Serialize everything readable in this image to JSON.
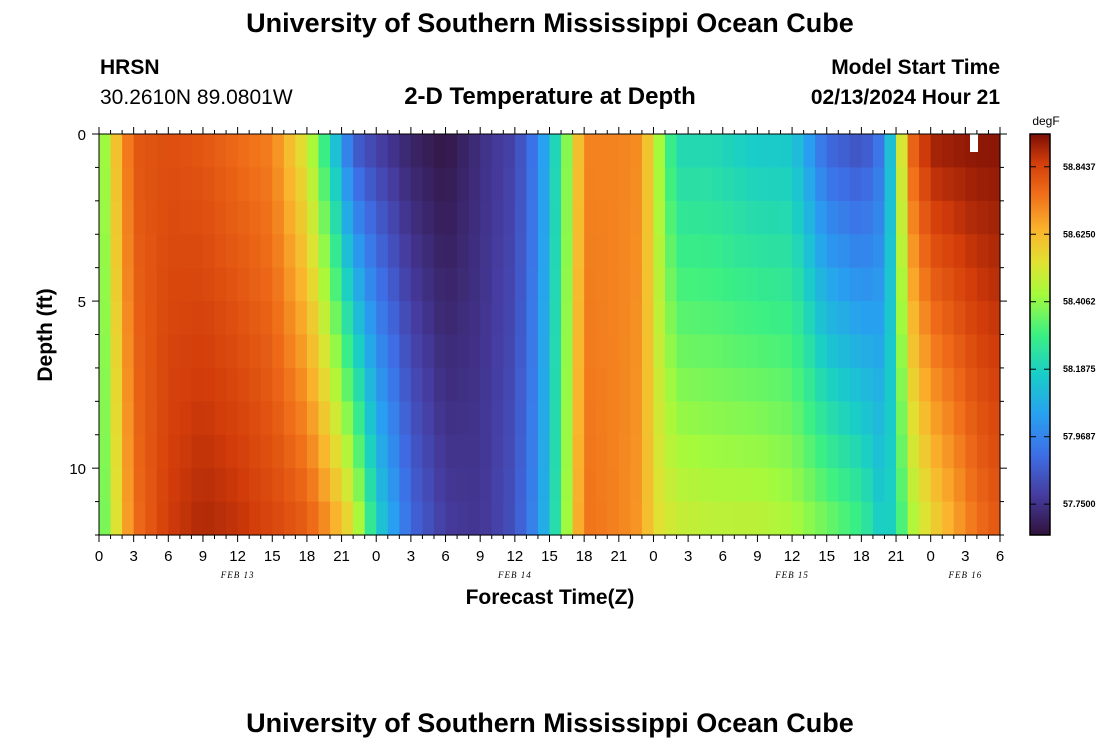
{
  "page": {
    "title": "University of Southern Mississippi Ocean Cube",
    "station": "HRSN",
    "coords": "30.2610N  89.0801W",
    "subtitle": "2-D Temperature at Depth",
    "model_label": "Model Start Time",
    "model_time": "02/13/2024 Hour 21",
    "bottom_title": "University of Southern Mississippi Ocean Cube"
  },
  "chart_data": {
    "type": "heatmap",
    "title": "2-D Temperature at Depth",
    "xlabel": "Forecast Time(Z)",
    "ylabel": "Depth (ft)",
    "x_start_hour_of_feb13": 0,
    "x_hours": 78,
    "x_ticks": [
      "0",
      "3",
      "6",
      "9",
      "12",
      "15",
      "18",
      "21",
      "0",
      "3",
      "6",
      "9",
      "12",
      "15",
      "18",
      "21",
      "0",
      "3",
      "6",
      "9",
      "12",
      "15",
      "18",
      "21",
      "0",
      "3",
      "6"
    ],
    "date_labels": [
      {
        "text": "FEB 13",
        "hour": 12
      },
      {
        "text": "FEB 14",
        "hour": 36
      },
      {
        "text": "FEB 15",
        "hour": 60
      },
      {
        "text": "FEB 16",
        "hour": 75
      }
    ],
    "y_ticks": [
      0,
      5,
      10
    ],
    "ylim": [
      0,
      12
    ],
    "depth_rows": [
      0,
      1,
      2,
      3,
      4,
      5,
      6,
      7,
      8,
      9,
      10,
      11
    ],
    "colorbar": {
      "unit": "degF",
      "ticks": [
        "58.8437",
        "58.6250",
        "58.4062",
        "58.1875",
        "57.9687",
        "57.7500"
      ],
      "vmin": 57.65,
      "vmax": 58.95
    },
    "profiles": [
      {
        "hour": 0,
        "surface": 58.3,
        "bottom": 58.3
      },
      {
        "hour": 1,
        "surface": 58.55,
        "bottom": 58.45
      },
      {
        "hour": 3,
        "surface": 58.8,
        "bottom": 58.75
      },
      {
        "hour": 6,
        "surface": 58.82,
        "bottom": 58.86
      },
      {
        "hour": 9,
        "surface": 58.8,
        "bottom": 58.9
      },
      {
        "hour": 12,
        "surface": 58.76,
        "bottom": 58.88
      },
      {
        "hour": 15,
        "surface": 58.72,
        "bottom": 58.84
      },
      {
        "hour": 18,
        "surface": 58.5,
        "bottom": 58.8
      },
      {
        "hour": 20,
        "surface": 58.2,
        "bottom": 58.7
      },
      {
        "hour": 22,
        "surface": 57.85,
        "bottom": 58.55
      },
      {
        "hour": 24,
        "surface": 57.78,
        "bottom": 58.2
      },
      {
        "hour": 27,
        "surface": 57.7,
        "bottom": 57.9
      },
      {
        "hour": 30,
        "surface": 57.66,
        "bottom": 57.78
      },
      {
        "hour": 33,
        "surface": 57.74,
        "bottom": 57.76
      },
      {
        "hour": 36,
        "surface": 57.8,
        "bottom": 57.84
      },
      {
        "hour": 38,
        "surface": 57.96,
        "bottom": 58.0
      },
      {
        "hour": 40,
        "surface": 58.28,
        "bottom": 58.3
      },
      {
        "hour": 41,
        "surface": 58.5,
        "bottom": 58.55
      },
      {
        "hour": 42,
        "surface": 58.72,
        "bottom": 58.75
      },
      {
        "hour": 45,
        "surface": 58.72,
        "bottom": 58.72
      },
      {
        "hour": 47,
        "surface": 58.7,
        "bottom": 58.68
      },
      {
        "hour": 48,
        "surface": 58.5,
        "bottom": 58.55
      },
      {
        "hour": 50,
        "surface": 58.2,
        "bottom": 58.5
      },
      {
        "hour": 53,
        "surface": 58.2,
        "bottom": 58.48
      },
      {
        "hour": 57,
        "surface": 58.15,
        "bottom": 58.48
      },
      {
        "hour": 60,
        "surface": 58.15,
        "bottom": 58.45
      },
      {
        "hour": 63,
        "surface": 57.88,
        "bottom": 58.38
      },
      {
        "hour": 66,
        "surface": 57.82,
        "bottom": 58.3
      },
      {
        "hour": 68,
        "surface": 57.95,
        "bottom": 58.15
      },
      {
        "hour": 69,
        "surface": 58.3,
        "bottom": 58.22
      },
      {
        "hour": 70,
        "surface": 58.75,
        "bottom": 58.4
      },
      {
        "hour": 72,
        "surface": 58.92,
        "bottom": 58.55
      },
      {
        "hour": 76,
        "surface": 58.94,
        "bottom": 58.75
      },
      {
        "hour": 78,
        "surface": 58.94,
        "bottom": 58.8
      }
    ]
  }
}
